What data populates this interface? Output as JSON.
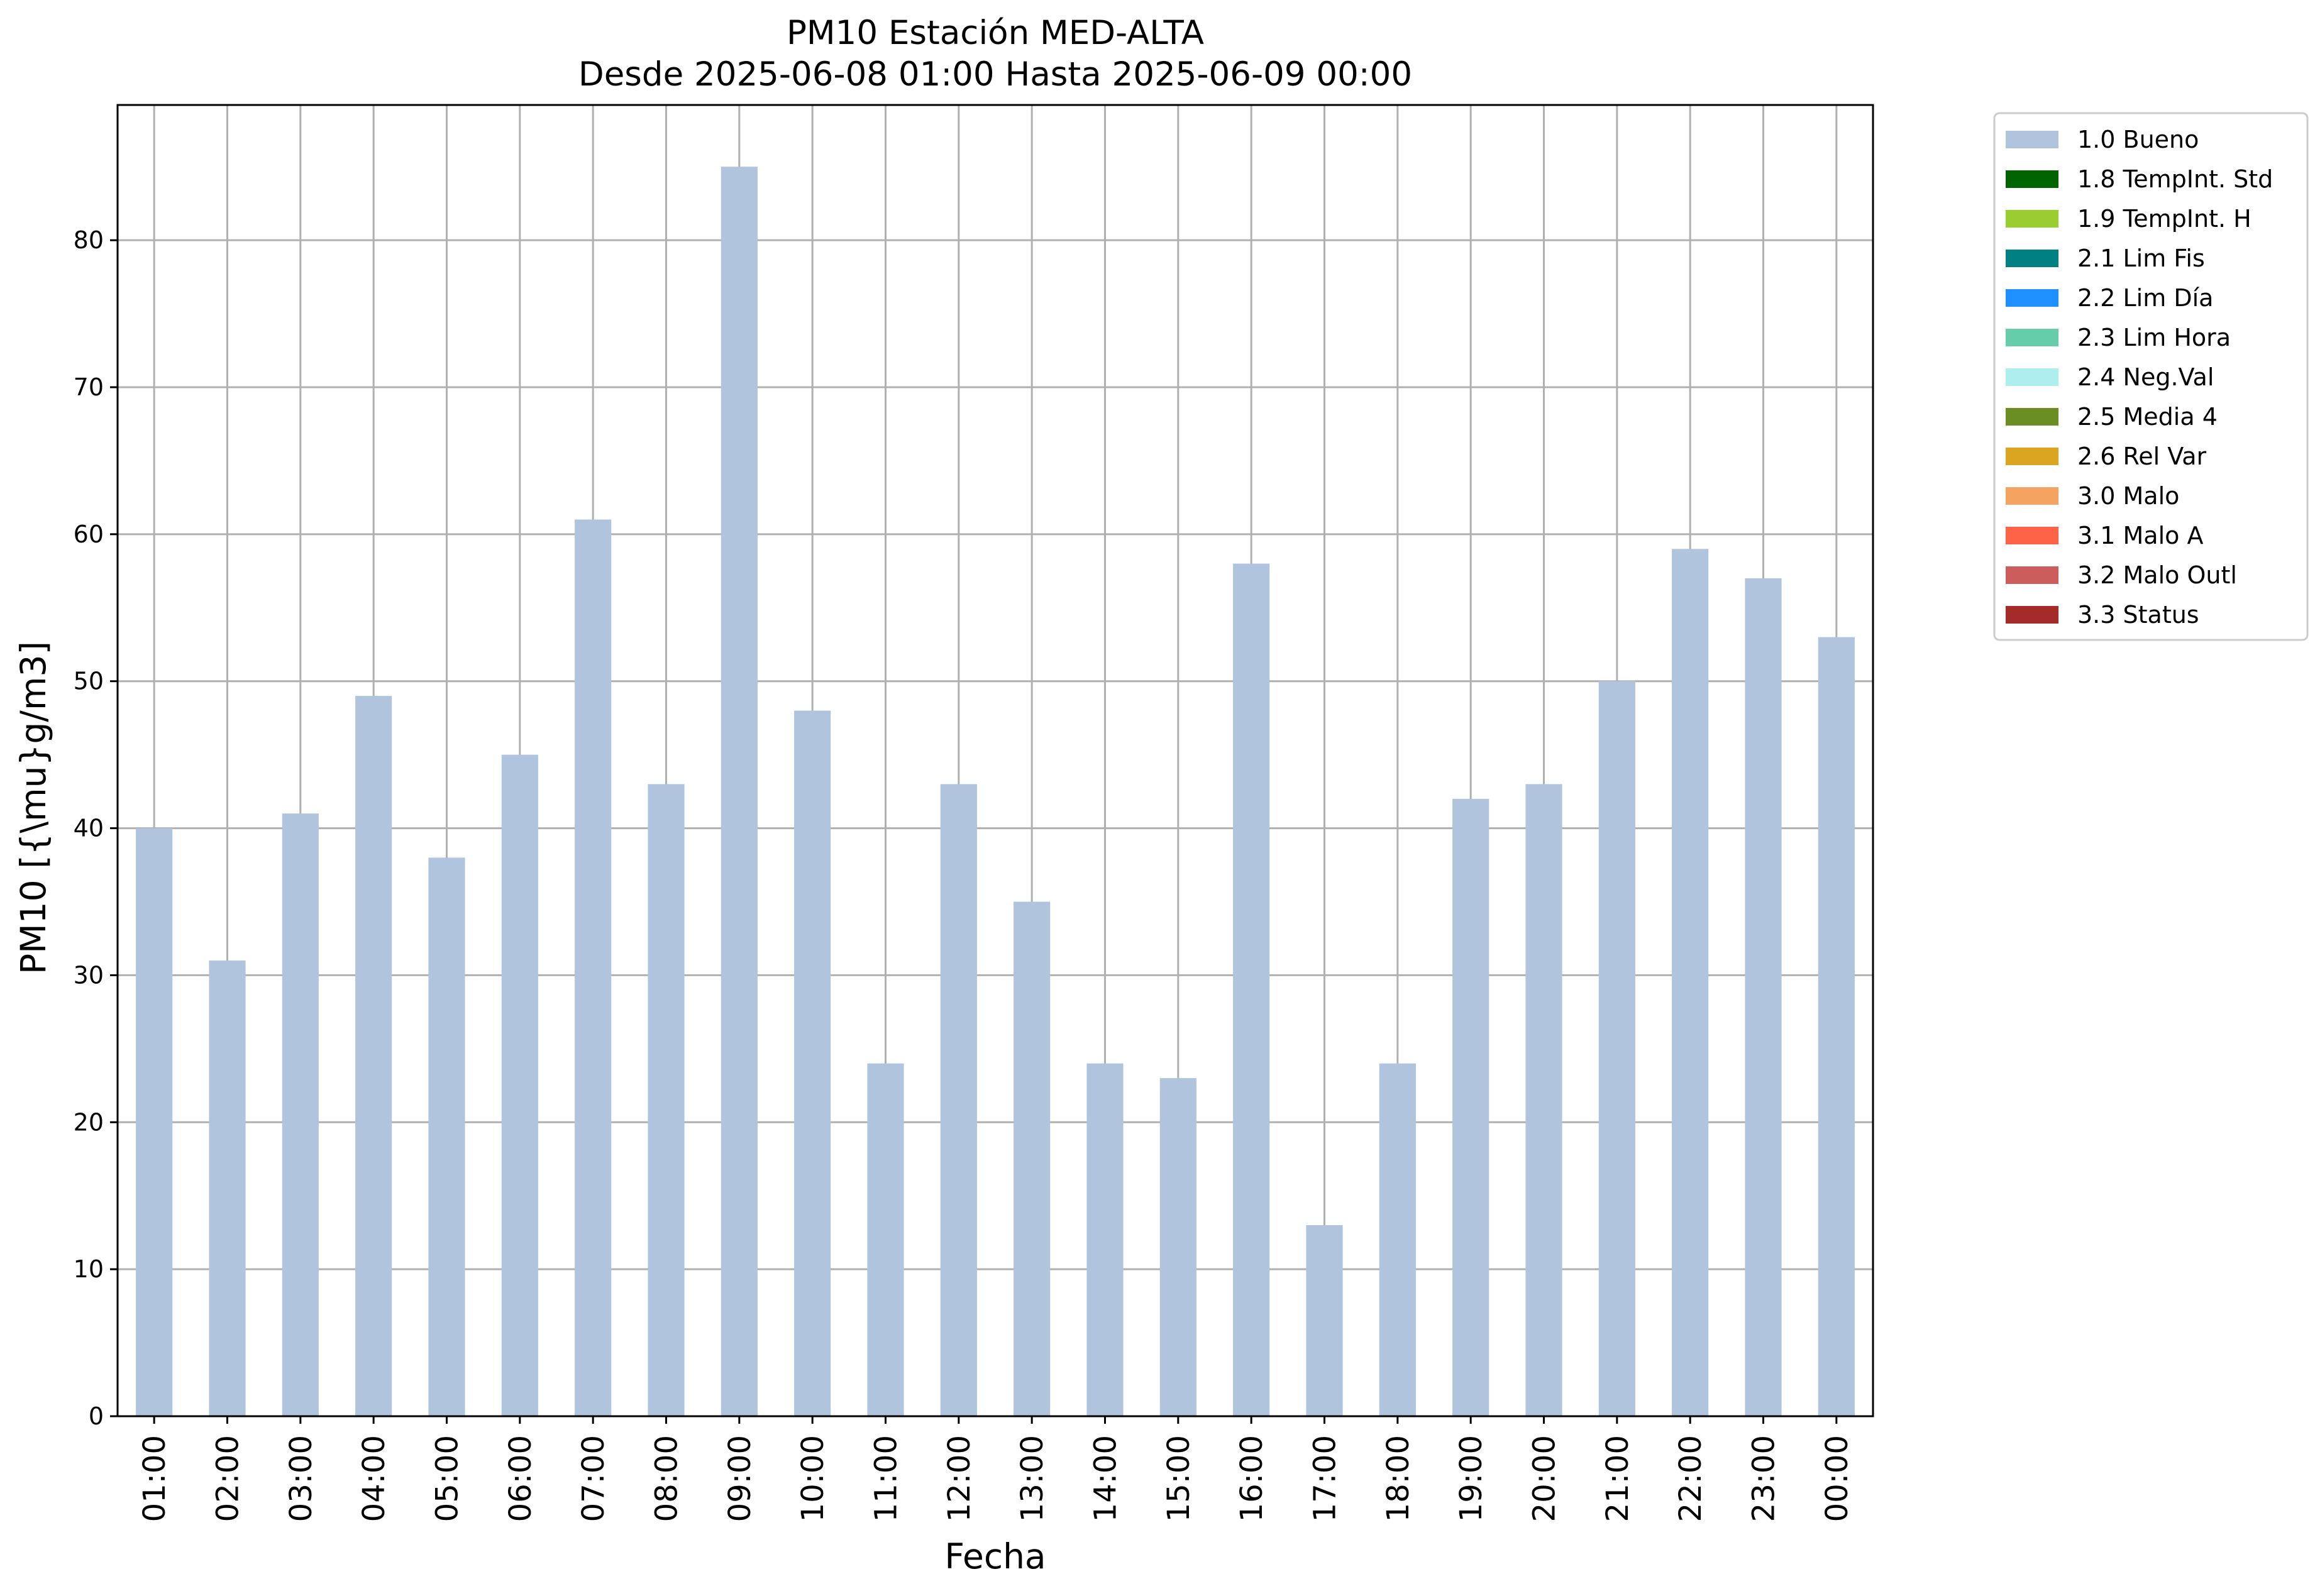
{
  "chart_data": {
    "type": "bar",
    "title": "PM10 Estación MED-ALTA",
    "subtitle": "Desde 2025-06-08 01:00 Hasta 2025-06-09 00:00",
    "xlabel": "Fecha",
    "ylabel": "PM10 [{\\mu}g/m3]",
    "ylim": [
      0,
      89.2
    ],
    "yticks": [
      0,
      10,
      20,
      30,
      40,
      50,
      60,
      70,
      80
    ],
    "grid": true,
    "legend_position": "outside-right",
    "categories": [
      "01:00",
      "02:00",
      "03:00",
      "04:00",
      "05:00",
      "06:00",
      "07:00",
      "08:00",
      "09:00",
      "10:00",
      "11:00",
      "12:00",
      "13:00",
      "14:00",
      "15:00",
      "16:00",
      "17:00",
      "18:00",
      "19:00",
      "20:00",
      "21:00",
      "22:00",
      "23:00",
      "00:00"
    ],
    "series": [
      {
        "name": "1.0 Bueno",
        "color": "#b0c4de",
        "values": [
          40,
          31,
          41,
          49,
          38,
          45,
          61,
          43,
          85,
          48,
          24,
          43,
          35,
          24,
          23,
          58,
          13,
          24,
          42,
          43,
          50,
          59,
          57,
          53
        ]
      }
    ],
    "legend": [
      {
        "label": "1.0 Bueno",
        "color": "#b0c4de"
      },
      {
        "label": "1.8 TempInt. Std",
        "color": "#006400"
      },
      {
        "label": "1.9 TempInt. H",
        "color": "#9acd32"
      },
      {
        "label": "2.1 Lim Fis",
        "color": "#008080"
      },
      {
        "label": "2.2 Lim Día",
        "color": "#1e90ff"
      },
      {
        "label": "2.3 Lim Hora",
        "color": "#66cdaa"
      },
      {
        "label": "2.4 Neg.Val",
        "color": "#afeeee"
      },
      {
        "label": "2.5 Media 4",
        "color": "#6b8e23"
      },
      {
        "label": "2.6 Rel Var",
        "color": "#daa520"
      },
      {
        "label": "3.0 Malo",
        "color": "#f4a460"
      },
      {
        "label": "3.1 Malo A",
        "color": "#ff6347"
      },
      {
        "label": "3.2 Malo Outl",
        "color": "#cd5c5c"
      },
      {
        "label": "3.3 Status",
        "color": "#a52a2a"
      }
    ]
  }
}
